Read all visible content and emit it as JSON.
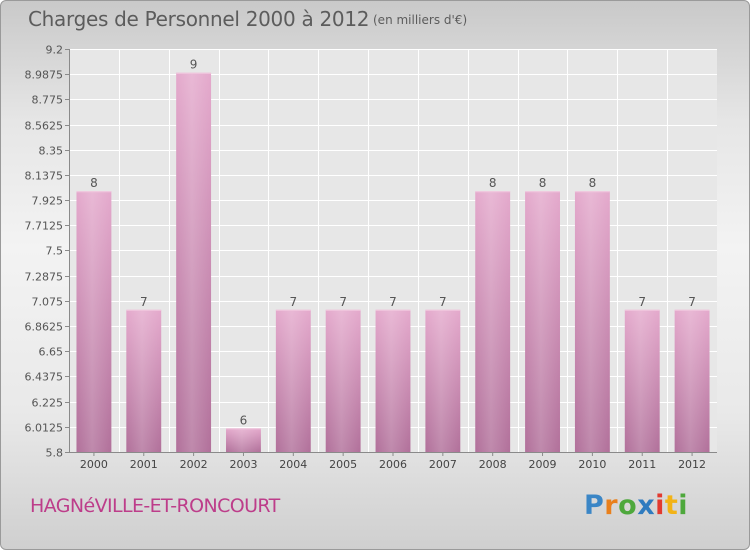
{
  "header": {
    "title": "Charges de Personnel 2000 à 2012",
    "subtitle": "(en milliers d'€)"
  },
  "footer": {
    "commune": "HAGNéVILLE-ET-RONCOURT",
    "logo_letters": [
      "P",
      "r",
      "o",
      "x",
      "i",
      "t",
      "i"
    ],
    "logo_colors": [
      "#3b86c6",
      "#e9801c",
      "#4ea83c",
      "#2f7bbf",
      "#e23a2f",
      "#f2b317",
      "#4ea83c"
    ]
  },
  "chart_data": {
    "type": "bar",
    "categories": [
      "2000",
      "2001",
      "2002",
      "2003",
      "2004",
      "2005",
      "2006",
      "2007",
      "2008",
      "2009",
      "2010",
      "2011",
      "2012"
    ],
    "values": [
      8,
      7,
      9,
      6,
      7,
      7,
      7,
      7,
      8,
      8,
      8,
      7,
      7
    ],
    "data_labels": [
      "8",
      "7",
      "9",
      "6",
      "7",
      "7",
      "7",
      "7",
      "8",
      "8",
      "8",
      "7",
      "7"
    ],
    "ylim": [
      5.8,
      9.2
    ],
    "yticks": [
      5.8,
      6.0125,
      6.225,
      6.4375,
      6.65,
      6.8625,
      7.075,
      7.2875,
      7.5,
      7.7125,
      7.925,
      8.1375,
      8.35,
      8.5625,
      8.775,
      8.9875,
      9.2
    ],
    "ytick_labels": [
      "5.8",
      "6.0125",
      "6.225",
      "6.4375",
      "6.65",
      "6.8625",
      "7.075",
      "7.2875",
      "7.5",
      "7.7125",
      "7.925",
      "8.1375",
      "8.35",
      "8.5625",
      "8.775",
      "8.9875",
      "9.2"
    ],
    "grid": true,
    "bar_color": "#d68bb5"
  }
}
